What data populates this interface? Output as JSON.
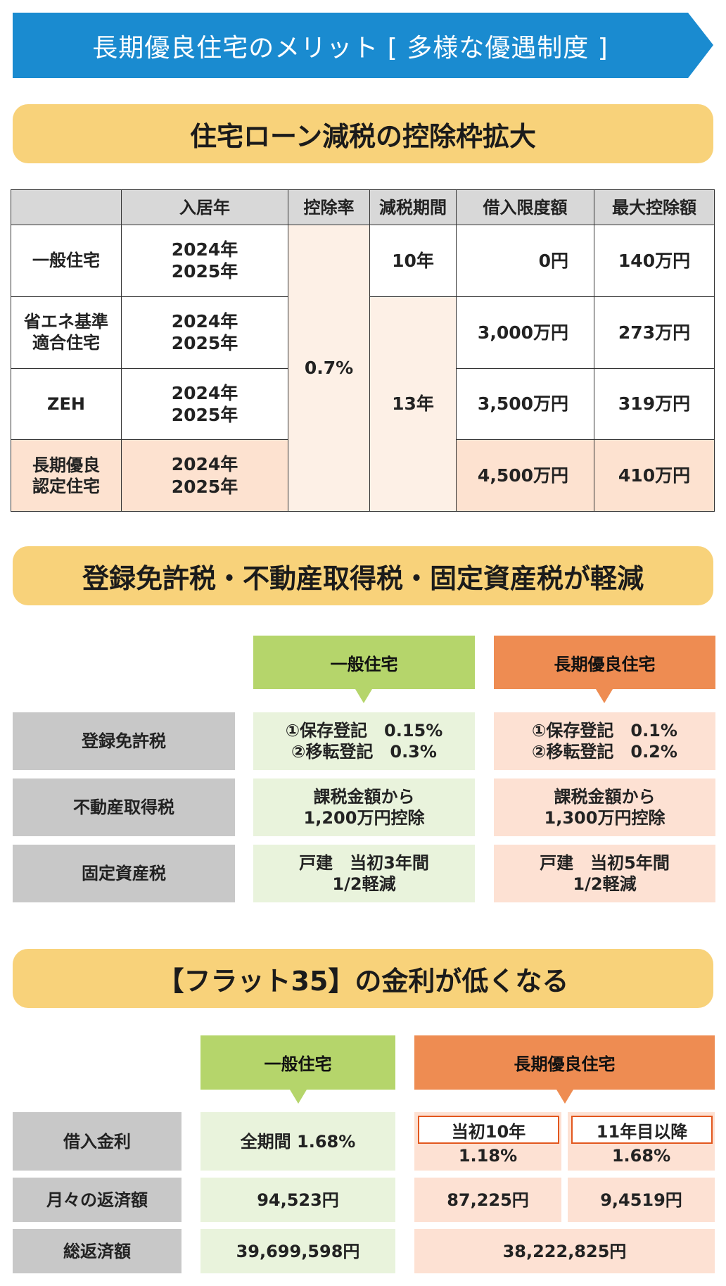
{
  "banner": {
    "title": "長期優良住宅のメリット [ 多様な優遇制度 ]",
    "color": "#1a8bd0"
  },
  "section1": {
    "heading": "住宅ローン減税の控除枠拡大",
    "headers": [
      "",
      "入居年",
      "控除率",
      "減税期間",
      "借入限度額",
      "最大控除額"
    ],
    "rows": [
      {
        "type": "一般住宅",
        "years": [
          "2024年",
          "2025年"
        ],
        "limit": "0円",
        "max": "140万円"
      },
      {
        "type": [
          "省エネ基準",
          "適合住宅"
        ],
        "years": [
          "2024年",
          "2025年"
        ],
        "limit": "3,000万円",
        "max": "273万円"
      },
      {
        "type": "ZEH",
        "years": [
          "2024年",
          "2025年"
        ],
        "limit": "3,500万円",
        "max": "319万円"
      },
      {
        "type": [
          "長期優良",
          "認定住宅"
        ],
        "years": [
          "2024年",
          "2025年"
        ],
        "limit": "4,500万円",
        "max": "410万円"
      }
    ],
    "rate": "0.7%",
    "period_general": "10年",
    "period_other": "13年"
  },
  "section2": {
    "heading": "登録免許税・不動産取得税・固定資産税が軽減",
    "col_general": "一般住宅",
    "col_long": "長期優良住宅",
    "rows": [
      {
        "label": "登録免許税",
        "general": [
          "①保存登記　0.15%",
          "②移転登記　0.3%"
        ],
        "long": [
          "①保存登記　0.1%",
          "②移転登記　0.2%"
        ]
      },
      {
        "label": "不動産取得税",
        "general": [
          "課税金額から",
          "1,200万円控除"
        ],
        "long": [
          "課税金額から",
          "1,300万円控除"
        ]
      },
      {
        "label": "固定資産税",
        "general": [
          "戸建　当初3年間",
          "1/2軽減"
        ],
        "long": [
          "戸建　当初5年間",
          "1/2軽減"
        ]
      }
    ]
  },
  "section3": {
    "heading": "【フラット35】の金利が低くなる",
    "col_general": "一般住宅",
    "col_long": "長期優良住宅",
    "rate_label": "借入金利",
    "rate_general": "全期間 1.68%",
    "rate_long_early_label": "当初10年",
    "rate_long_early": "1.18%",
    "rate_long_late_label": "11年目以降",
    "rate_long_late": "1.68%",
    "monthly_label": "月々の返済額",
    "monthly_general": "94,523円",
    "monthly_long_early": "87,225円",
    "monthly_long_late": "9,4519円",
    "total_label": "総返済額",
    "total_general": "39,699,598円",
    "total_long": "38,222,825円"
  }
}
